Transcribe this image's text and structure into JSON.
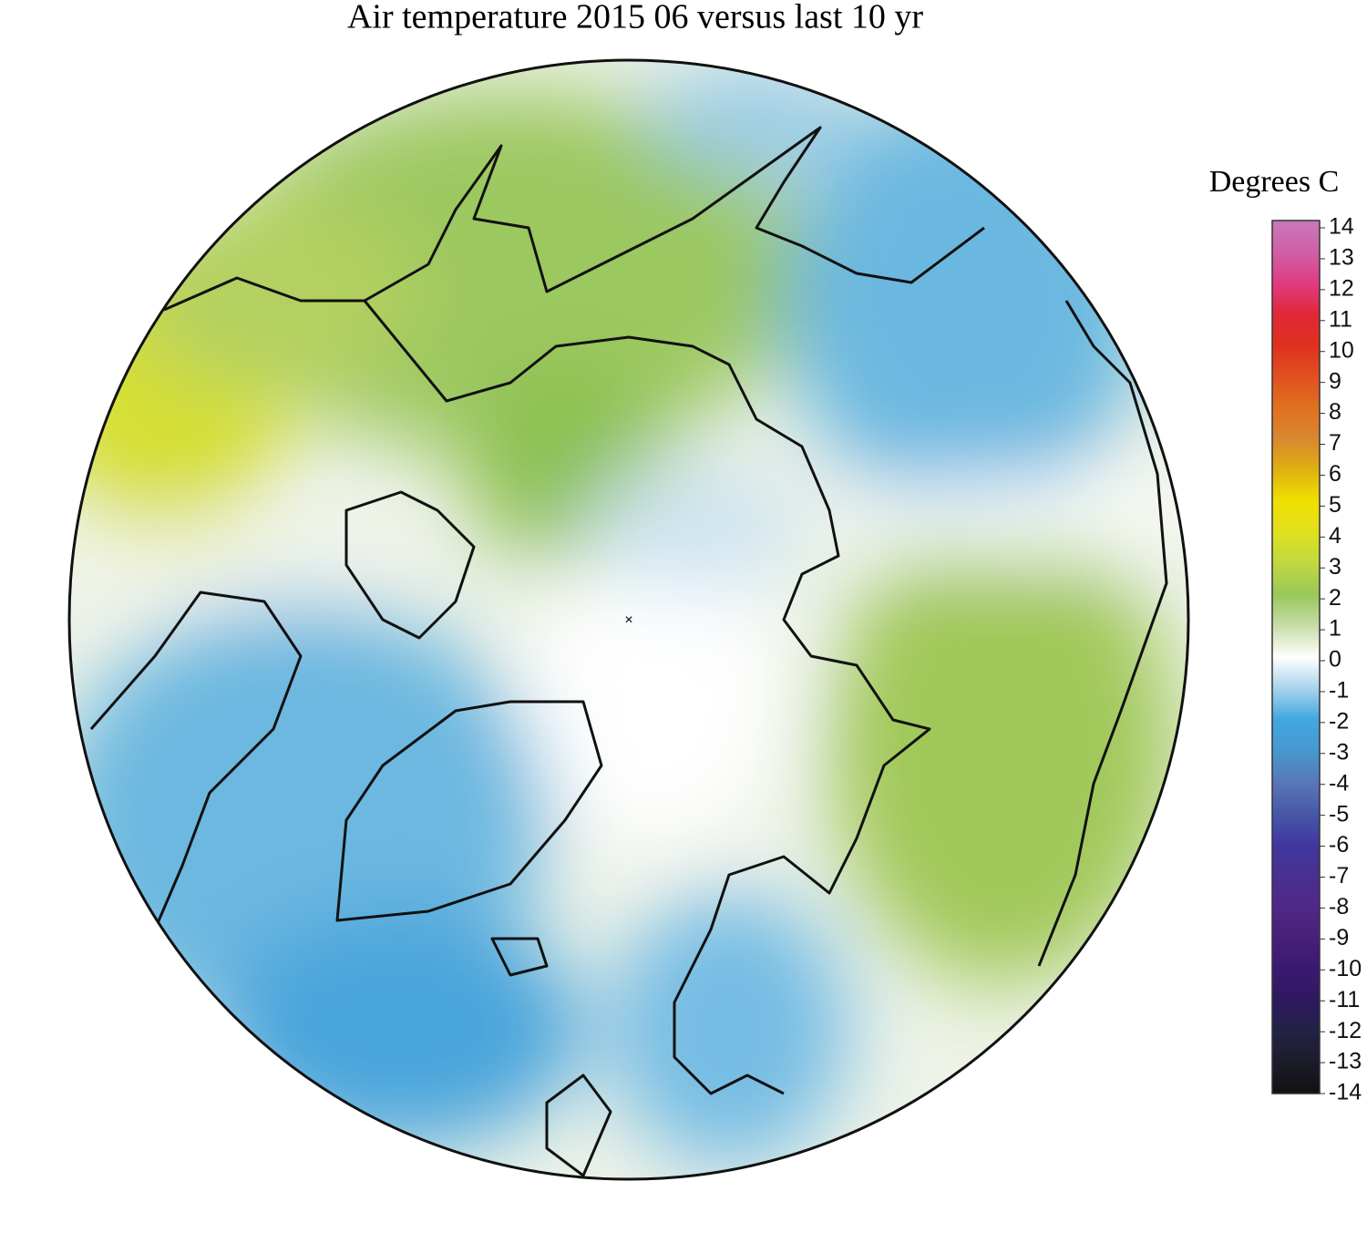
{
  "chart_data": {
    "type": "polar-map",
    "title": "Air temperature 2015 06 versus last 10 yr",
    "colorbar_label": "Degrees C",
    "clim": [
      -14,
      14
    ],
    "yticks": [
      14,
      13,
      12,
      11,
      10,
      9,
      8,
      7,
      6,
      5,
      4,
      3,
      2,
      1,
      0,
      -1,
      -2,
      -3,
      -4,
      -5,
      -6,
      -7,
      -8,
      -9,
      -10,
      -11,
      -12,
      -13,
      -14
    ],
    "colormap": [
      "#111111",
      "#1c1c2a",
      "#222244",
      "#301860",
      "#3a1a70",
      "#482078",
      "#502888",
      "#483090",
      "#4038a0",
      "#4858a8",
      "#5878b8",
      "#4898d0",
      "#40a8e0",
      "#a8d4ec",
      "#ffffff",
      "#c8dca8",
      "#98c858",
      "#c0d840",
      "#e0e020",
      "#f0e000",
      "#e0b010",
      "#d88830",
      "#e07020",
      "#e05020",
      "#e03020",
      "#e02838",
      "#e03c80",
      "#d060a8",
      "#c878b8"
    ]
  }
}
